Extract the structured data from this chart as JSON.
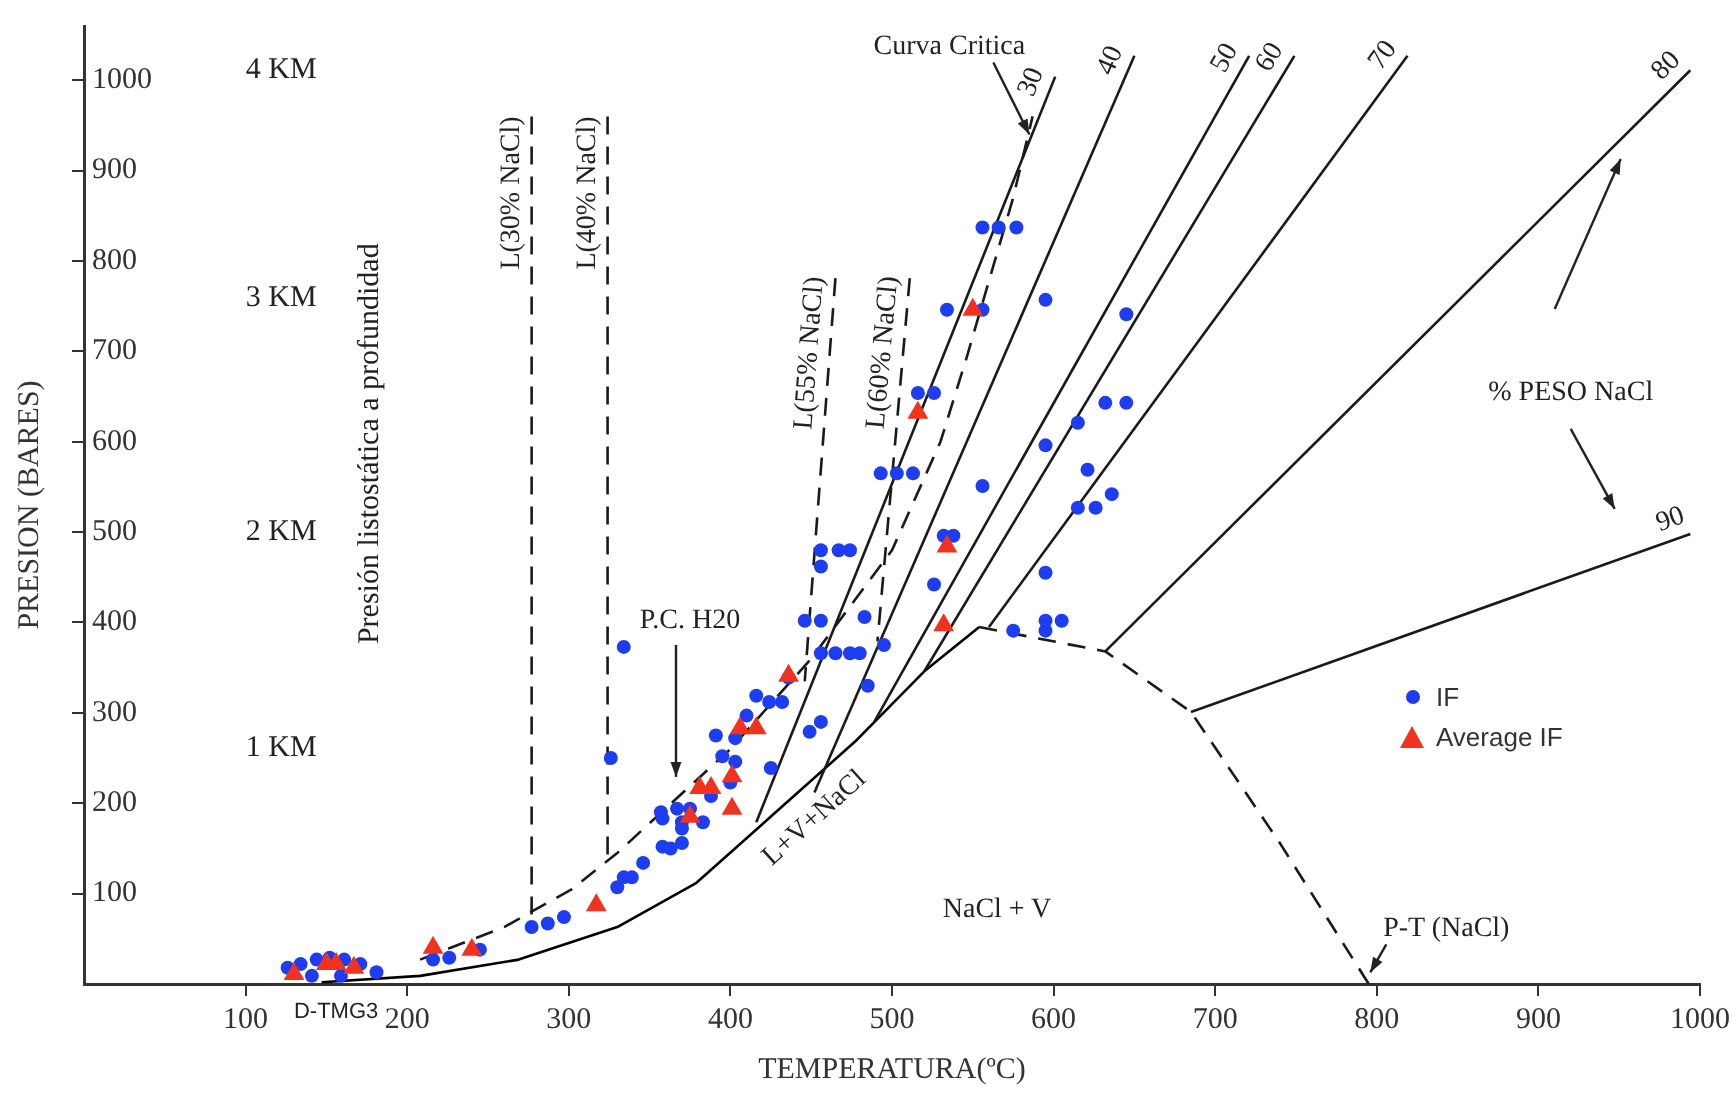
{
  "chart_data": {
    "type": "scatter",
    "xlabel": "TEMPERATURA(ºC)",
    "ylabel": "PRESION (BARES)",
    "xlim": [
      0,
      1000
    ],
    "ylim": [
      0,
      1060
    ],
    "xticks": [
      100,
      200,
      300,
      400,
      500,
      600,
      700,
      800,
      900,
      1000
    ],
    "yticks": [
      100,
      200,
      300,
      400,
      500,
      600,
      700,
      800,
      900,
      1000
    ],
    "legend": "right",
    "series": [
      {
        "name": "IF",
        "marker": "circle",
        "color": "#1f3df0",
        "x": [
          126,
          134,
          144,
          152,
          161,
          171,
          181,
          141,
          159,
          216,
          226,
          245,
          277,
          287,
          297,
          334,
          346,
          363,
          370,
          358,
          334,
          326,
          456,
          467,
          474,
          456,
          446,
          456,
          483,
          456,
          465,
          474,
          480,
          495,
          485,
          436,
          432,
          424,
          449,
          456,
          425,
          391,
          403,
          395,
          403,
          400,
          388,
          375,
          367,
          357,
          370,
          383,
          358,
          370,
          339,
          330,
          416,
          410,
          556,
          566,
          577,
          595,
          645,
          534,
          556,
          516,
          526,
          493,
          503,
          513,
          632,
          645,
          615,
          595,
          621,
          636,
          556,
          615,
          626,
          532,
          538,
          526,
          595,
          575,
          595,
          605,
          595
        ],
        "values": [
          18,
          22,
          27,
          29,
          27,
          22,
          13,
          9,
          9,
          27,
          29,
          38,
          63,
          67,
          74,
          118,
          134,
          150,
          172,
          183,
          373,
          250,
          480,
          480,
          480,
          462,
          402,
          402,
          406,
          366,
          366,
          366,
          366,
          375,
          330,
          339,
          312,
          312,
          279,
          290,
          239,
          275,
          272,
          252,
          246,
          223,
          208,
          194,
          194,
          190,
          179,
          179,
          152,
          156,
          118,
          107,
          319,
          297,
          837,
          837,
          837,
          757,
          741,
          746,
          746,
          654,
          654,
          565,
          565,
          565,
          643,
          643,
          621,
          596,
          569,
          542,
          551,
          527,
          527,
          496,
          496,
          442,
          455,
          391,
          402,
          402,
          391
        ]
      },
      {
        "name": "Average IF",
        "marker": "triangle",
        "color": "#f0321e",
        "x": [
          130,
          150,
          156,
          167,
          216,
          240,
          317,
          375,
          436,
          406,
          416,
          381,
          388,
          401,
          401,
          550,
          516,
          534,
          532
        ],
        "values": [
          11,
          22,
          22,
          18,
          40,
          38,
          87,
          185,
          341,
          283,
          283,
          217,
          217,
          230,
          194,
          746,
          632,
          484,
          397
        ]
      },
      {
        "name": "30",
        "type": "line",
        "color": "#1a1a1a",
        "x": [
          416,
          601
        ],
        "values": [
          179,
          1004
        ]
      },
      {
        "name": "40",
        "type": "line",
        "color": "#1a1a1a",
        "x": [
          452,
          650
        ],
        "values": [
          212,
          1027
        ]
      },
      {
        "name": "50",
        "type": "line",
        "color": "#1a1a1a",
        "x": [
          489,
          721
        ],
        "values": [
          290,
          1027
        ]
      },
      {
        "name": "60",
        "type": "line",
        "color": "#1a1a1a",
        "x": [
          520,
          749
        ],
        "values": [
          346,
          1027
        ]
      },
      {
        "name": "70",
        "type": "line",
        "color": "#1a1a1a",
        "x": [
          560,
          819
        ],
        "values": [
          395,
          1027
        ]
      },
      {
        "name": "80",
        "type": "line",
        "color": "#1a1a1a",
        "x": [
          632,
          994
        ],
        "values": [
          368,
          1011
        ]
      },
      {
        "name": "90",
        "type": "line",
        "color": "#1a1a1a",
        "x": [
          685,
          994
        ],
        "values": [
          301,
          498
        ]
      },
      {
        "type": "line",
        "color": "#000000",
        "x": [
          147,
          208,
          269,
          330,
          379,
          428,
          477,
          520,
          554
        ],
        "values": [
          2,
          9,
          27,
          63,
          112,
          190,
          268,
          346,
          395
        ]
      },
      {
        "type": "line",
        "color": "#1a1a1a",
        "line_style": "dashed",
        "x": [
          208,
          260,
          302,
          330,
          400,
          450,
          500,
          530,
          546,
          575,
          587
        ],
        "values": [
          27,
          63,
          105,
          145,
          260,
          360,
          480,
          600,
          692,
          870,
          960
        ]
      },
      {
        "type": "line",
        "color": "#1a1a1a",
        "line_style": "dashed",
        "x": [
          554,
          632,
          685,
          740,
          795
        ],
        "values": [
          395,
          368,
          301,
          156,
          0
        ]
      },
      {
        "name": "L(30% NaCl)",
        "type": "line",
        "color": "#1a1a1a",
        "line_style": "dashed",
        "x": [
          277,
          277
        ],
        "values": [
          960,
          60
        ]
      },
      {
        "name": "L(40% NaCl)",
        "type": "line",
        "color": "#1a1a1a",
        "line_style": "dashed",
        "x": [
          324,
          324
        ],
        "values": [
          960,
          134
        ]
      },
      {
        "name": "L(55% NaCl)",
        "type": "line",
        "color": "#1a1a1a",
        "line_style": "dashed",
        "x": [
          465,
          446
        ],
        "values": [
          781,
          335
        ]
      },
      {
        "name": "L(60% NaCl)",
        "type": "line",
        "color": "#1a1a1a",
        "line_style": "dashed",
        "x": [
          511,
          491
        ],
        "values": [
          781,
          379
        ]
      }
    ],
    "annotations": [
      "4 KM",
      "3 KM",
      "2 KM",
      "1 KM",
      "Presión listostática a profundidad",
      {
        "text": "Curva Critica",
        "x": 585,
        "y": 940
      },
      "P.C. H20",
      "L+V+NaCl",
      "NaCl + V",
      "P-T (NaCl)",
      "% PESO NaCl",
      "D-TMG3"
    ]
  }
}
